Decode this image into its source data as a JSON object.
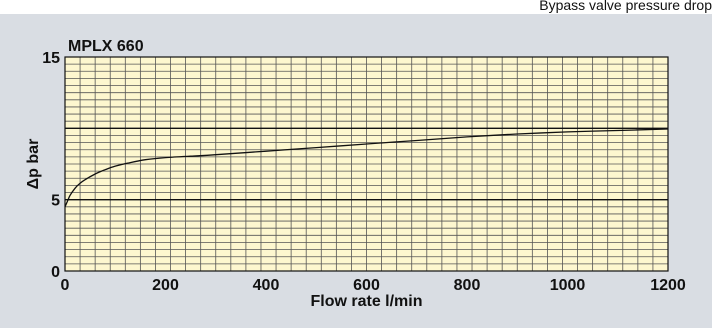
{
  "header": {
    "caption": "Bypass valve pressure drop"
  },
  "colors": {
    "plot_fill": "#fdf7cf",
    "panel": "#d9dde3",
    "grid_minor": "#555555",
    "grid_major": "#111111",
    "curve": "#111111"
  },
  "chart_data": {
    "type": "line",
    "title": "MPLX 660",
    "xlabel": "Flow rate l/min",
    "ylabel": "Δp bar",
    "xlim": [
      0,
      1200
    ],
    "ylim": [
      0,
      15
    ],
    "x_ticks": [
      0,
      200,
      400,
      600,
      800,
      1000,
      1200
    ],
    "y_ticks": [
      0,
      5,
      15
    ],
    "grid": true,
    "series": [
      {
        "x": [
          0,
          5,
          10,
          20,
          30,
          40,
          60,
          80,
          100,
          130,
          160,
          200,
          250,
          300,
          400,
          500,
          600,
          700,
          800,
          900,
          1000,
          1100,
          1200
        ],
        "y": [
          4.5,
          4.9,
          5.3,
          5.8,
          6.15,
          6.4,
          6.8,
          7.1,
          7.35,
          7.6,
          7.8,
          7.95,
          8.05,
          8.15,
          8.4,
          8.65,
          8.9,
          9.15,
          9.4,
          9.6,
          9.75,
          9.85,
          9.95
        ]
      }
    ]
  }
}
